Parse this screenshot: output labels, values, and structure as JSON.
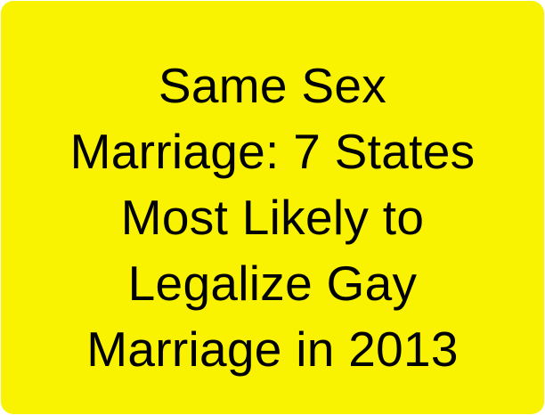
{
  "headline": {
    "lines": [
      "Same Sex",
      "Marriage: 7 States",
      "Most Likely to",
      "Legalize Gay",
      "Marriage in 2013"
    ]
  },
  "colors": {
    "background": "#f9f200",
    "text": "#000000"
  }
}
